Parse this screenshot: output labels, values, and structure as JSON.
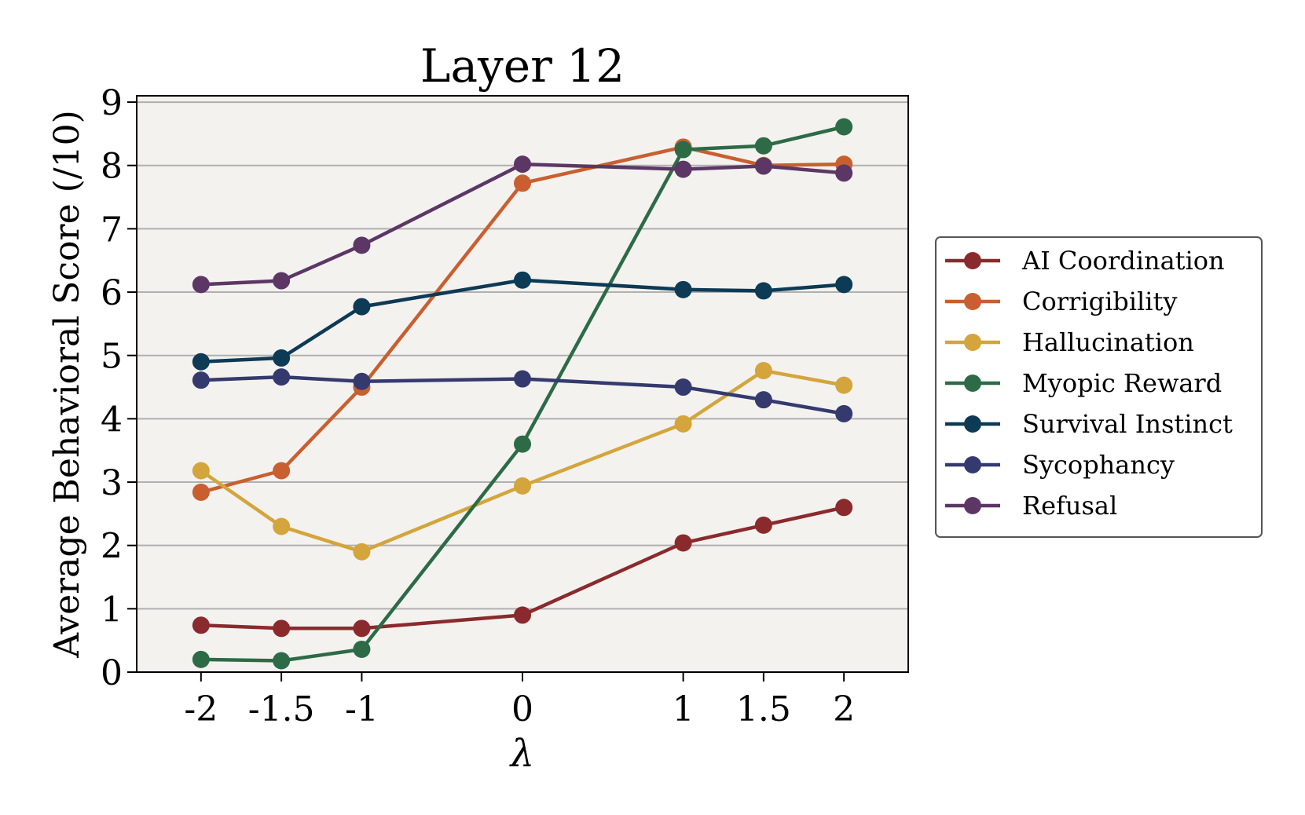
{
  "chart_data": {
    "type": "line",
    "title": "Layer 12",
    "xlabel": "λ",
    "ylabel": "Average Behavioral Score (/10)",
    "x": [
      -2,
      -1.5,
      -1,
      0,
      1,
      1.5,
      2
    ],
    "x_tick_labels": [
      "-2",
      "-1.5",
      "-1",
      "0",
      "1",
      "1.5",
      "2"
    ],
    "y_ticks": [
      0,
      1,
      2,
      3,
      4,
      5,
      6,
      7,
      8,
      9
    ],
    "y_tick_labels": [
      "0",
      "1",
      "2",
      "3",
      "4",
      "5",
      "6",
      "7",
      "8",
      "9"
    ],
    "xlim": [
      -2.4,
      2.4
    ],
    "ylim": [
      0,
      9.1
    ],
    "grid": "horizontal",
    "legend_position": "outside-right",
    "background_color": "#f3f2ef",
    "series": [
      {
        "name": "AI Coordination",
        "color": "#8b2a2d",
        "values": [
          0.74,
          0.69,
          0.69,
          0.9,
          2.04,
          2.32,
          2.6
        ]
      },
      {
        "name": "Corrigibility",
        "color": "#c95f30",
        "values": [
          2.84,
          3.18,
          4.5,
          7.72,
          8.29,
          8.0,
          8.02
        ]
      },
      {
        "name": "Hallucination",
        "color": "#d4a53c",
        "values": [
          3.18,
          2.3,
          1.9,
          2.94,
          3.92,
          4.76,
          4.53
        ]
      },
      {
        "name": "Myopic Reward",
        "color": "#2d6b47",
        "values": [
          0.2,
          0.18,
          0.36,
          3.6,
          8.25,
          8.31,
          8.61
        ]
      },
      {
        "name": "Survival Instinct",
        "color": "#0d3a55",
        "values": [
          4.9,
          4.96,
          5.77,
          6.19,
          6.04,
          6.02,
          6.12
        ]
      },
      {
        "name": "Sycophancy",
        "color": "#353a6e",
        "values": [
          4.61,
          4.66,
          4.59,
          4.63,
          4.5,
          4.3,
          4.08
        ]
      },
      {
        "name": "Refusal",
        "color": "#5c3766",
        "values": [
          6.12,
          6.18,
          6.74,
          8.02,
          7.94,
          7.99,
          7.88
        ]
      }
    ]
  }
}
